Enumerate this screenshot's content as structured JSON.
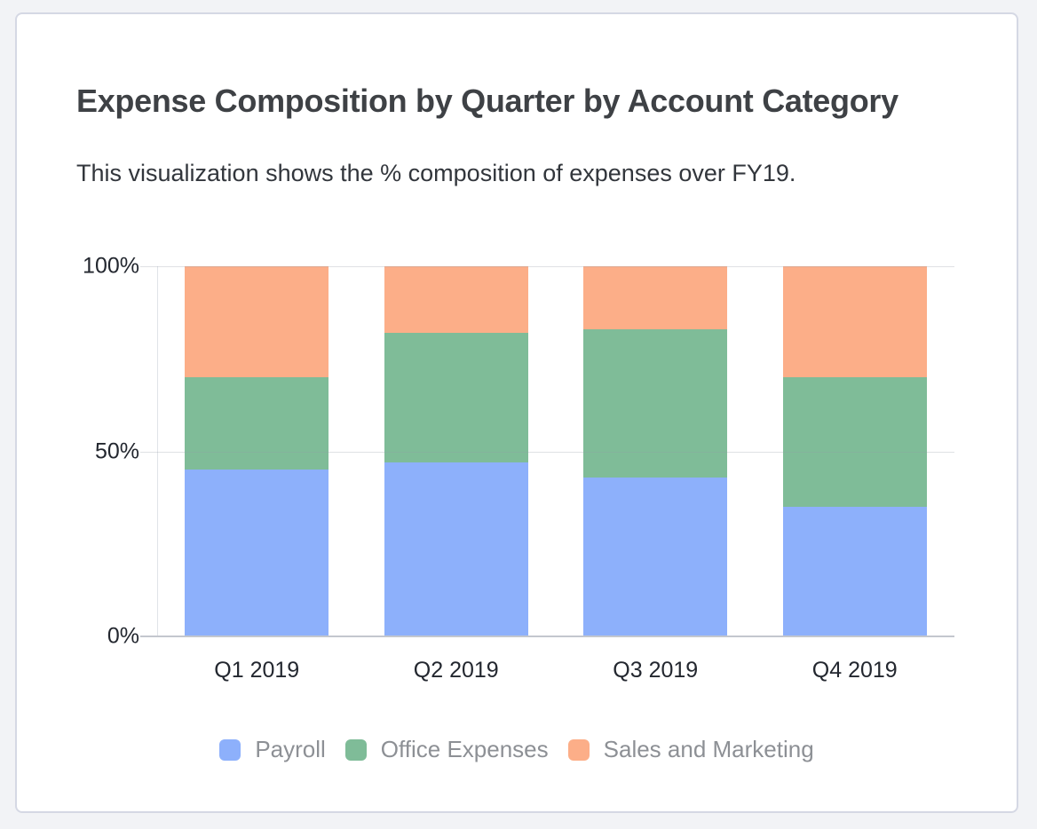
{
  "page": {
    "background_color": "#f2f3f6"
  },
  "card": {
    "title": "Expense Composition by Quarter by Account Category",
    "subtitle": "This visualization shows the % composition of expenses over FY19.",
    "background_color": "#ffffff",
    "border_color": "#d5d8e4"
  },
  "chart_data": {
    "type": "bar",
    "stacked": true,
    "orientation": "vertical",
    "unit": "percent",
    "title": "Expense Composition by Quarter by Account Category",
    "subtitle": "This visualization shows the % composition of expenses over FY19.",
    "categories": [
      "Q1 2019",
      "Q2 2019",
      "Q3 2019",
      "Q4 2019"
    ],
    "series": [
      {
        "name": "Payroll",
        "color": "#8DB0FB",
        "values": [
          45,
          47,
          43,
          35
        ]
      },
      {
        "name": "Office Expenses",
        "color": "#7FBC98",
        "values": [
          25,
          35,
          40,
          35
        ]
      },
      {
        "name": "Sales and Marketing",
        "color": "#FCAE88",
        "values": [
          30,
          18,
          17,
          30
        ]
      }
    ],
    "xlabel": "",
    "ylabel": "",
    "ylim": [
      0,
      100
    ],
    "yticks": [
      {
        "value": 100,
        "label": "100%"
      },
      {
        "value": 50,
        "label": "50%"
      },
      {
        "value": 0,
        "label": "0%"
      }
    ],
    "grid": true,
    "legend_position": "bottom"
  }
}
